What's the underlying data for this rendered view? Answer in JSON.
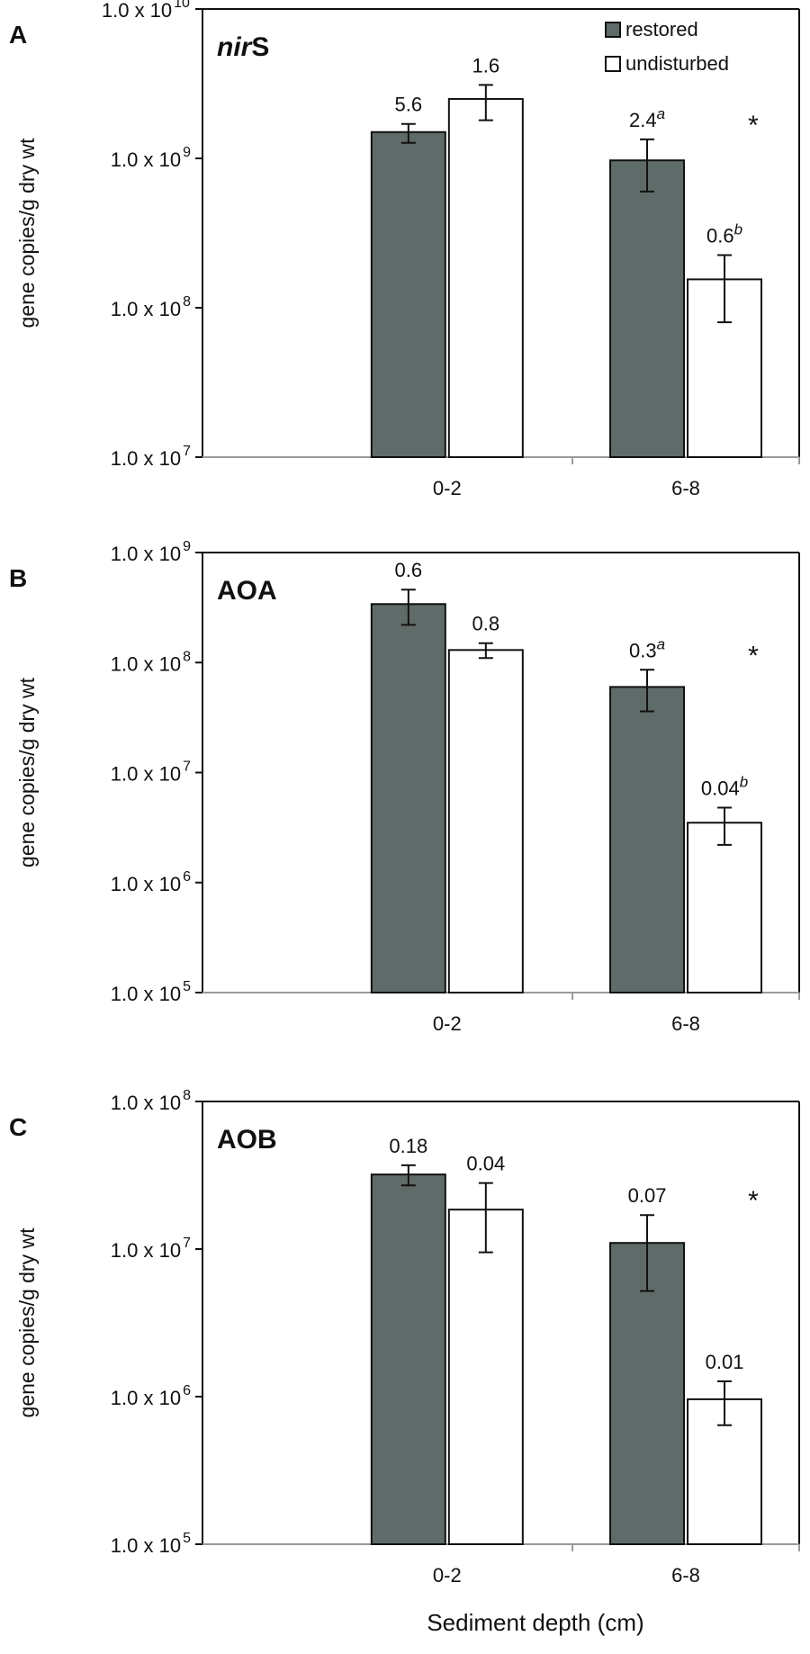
{
  "figure": {
    "shared_xlabel": "Sediment depth (cm)"
  },
  "chart_data": [
    {
      "type": "bar",
      "panel_letter": "A",
      "title": "nirS",
      "title_italic": "nir",
      "title_plain": "S",
      "ylabel": "gene copies/g dry wt",
      "yscale": "log",
      "ylim_exp": [
        7,
        10
      ],
      "yticks": [
        {
          "value": 10000000,
          "text": "1.0 x 10",
          "exp": "7"
        },
        {
          "value": 100000000,
          "text": "1.0 x 10",
          "exp": "8"
        },
        {
          "value": 1000000000,
          "text": "1.0 x 10",
          "exp": "9"
        },
        {
          "value": 10000000000,
          "text": "1.0 x 10",
          "exp": "10"
        }
      ],
      "categories": [
        "0-2",
        "6-8"
      ],
      "legend": {
        "position": "top-right",
        "entries": [
          "restored",
          "undisturbed"
        ]
      },
      "series": [
        {
          "name": "restored",
          "color": "#5f6b69",
          "values": [
            1500000000,
            970000000
          ],
          "err_low": [
            1270000000,
            600000000
          ],
          "err_high": [
            1700000000,
            1340000000
          ],
          "labels": [
            "5.6",
            "2.4"
          ],
          "label_sup": [
            "",
            "a"
          ]
        },
        {
          "name": "undisturbed",
          "color": "#ffffff",
          "values": [
            2500000000,
            155000000
          ],
          "err_low": [
            1800000000,
            80000000
          ],
          "err_high": [
            3100000000,
            225000000
          ],
          "labels": [
            "1.6",
            "0.6"
          ],
          "label_sup": [
            "",
            "b"
          ]
        }
      ],
      "significance": [
        "",
        "*"
      ]
    },
    {
      "type": "bar",
      "panel_letter": "B",
      "title": "AOA",
      "ylabel": "gene copies/g dry wt",
      "yscale": "log",
      "ylim_exp": [
        5,
        9
      ],
      "yticks": [
        {
          "value": 100000,
          "text": "1.0 x 10",
          "exp": "5"
        },
        {
          "value": 1000000,
          "text": "1.0 x 10",
          "exp": "6"
        },
        {
          "value": 10000000,
          "text": "1.0 x 10",
          "exp": "7"
        },
        {
          "value": 100000000,
          "text": "1.0 x 10",
          "exp": "8"
        },
        {
          "value": 1000000000,
          "text": "1.0 x 10",
          "exp": "9"
        }
      ],
      "categories": [
        "0-2",
        "6-8"
      ],
      "series": [
        {
          "name": "restored",
          "color": "#5f6b69",
          "values": [
            340000000,
            60000000
          ],
          "err_low": [
            220000000,
            36000000
          ],
          "err_high": [
            460000000,
            86000000
          ],
          "labels": [
            "0.6",
            "0.3"
          ],
          "label_sup": [
            "",
            "a"
          ]
        },
        {
          "name": "undisturbed",
          "color": "#ffffff",
          "values": [
            130000000,
            3500000
          ],
          "err_low": [
            110000000,
            2200000
          ],
          "err_high": [
            150000000,
            4800000
          ],
          "labels": [
            "0.8",
            "0.04"
          ],
          "label_sup": [
            "",
            "b"
          ]
        }
      ],
      "significance": [
        "",
        "*"
      ]
    },
    {
      "type": "bar",
      "panel_letter": "C",
      "title": "AOB",
      "ylabel": "gene copies/g dry wt",
      "yscale": "log",
      "ylim_exp": [
        5,
        8
      ],
      "yticks": [
        {
          "value": 100000,
          "text": "1.0 x 10",
          "exp": "5"
        },
        {
          "value": 1000000,
          "text": "1.0 x 10",
          "exp": "6"
        },
        {
          "value": 10000000,
          "text": "1.0 x 10",
          "exp": "7"
        },
        {
          "value": 100000000,
          "text": "1.0 x 10",
          "exp": "8"
        }
      ],
      "categories": [
        "0-2",
        "6-8"
      ],
      "series": [
        {
          "name": "restored",
          "color": "#5f6b69",
          "values": [
            32000000,
            11000000
          ],
          "err_low": [
            27000000,
            5200000
          ],
          "err_high": [
            37000000,
            17000000
          ],
          "labels": [
            "0.18",
            "0.07"
          ],
          "label_sup": [
            "",
            ""
          ]
        },
        {
          "name": "undisturbed",
          "color": "#ffffff",
          "values": [
            18500000,
            960000
          ],
          "err_low": [
            9500000,
            640000
          ],
          "err_high": [
            28000000,
            1270000
          ],
          "labels": [
            "0.04",
            "0.01"
          ],
          "label_sup": [
            "",
            ""
          ]
        }
      ],
      "significance": [
        "",
        "*"
      ]
    }
  ]
}
